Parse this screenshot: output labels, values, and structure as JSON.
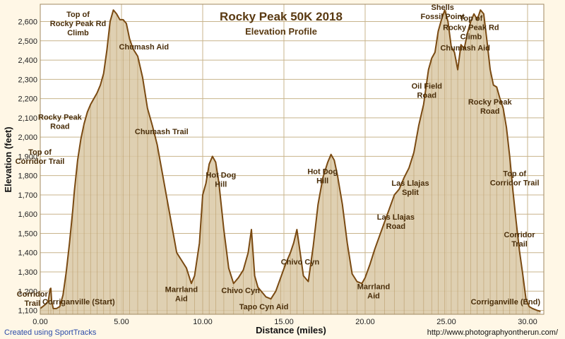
{
  "footer": {
    "credit": "Created using SportTracks",
    "url": "http://www.photographyontherun.com/"
  },
  "colors": {
    "background": "#fff7e6",
    "plot_background": "#ffffff",
    "fill": "#d9c8a4",
    "line": "#7a4a12",
    "grid": "#c8b48c",
    "text": "#4a2e0a"
  },
  "chart_data": {
    "type": "area",
    "title": "Rocky Peak 50K 2018",
    "subtitle": "Elevation Profile",
    "xlabel": "Distance (miles)",
    "ylabel": "Elevation (feet)",
    "xlim": [
      0,
      31
    ],
    "ylim": [
      1080,
      2690
    ],
    "grid": true,
    "x_ticks": [
      0,
      5,
      10,
      15,
      20,
      25,
      30
    ],
    "x_tick_labels": [
      "0.00",
      "5.00",
      "10.00",
      "15.00",
      "20.00",
      "25.00",
      "30.00"
    ],
    "y_ticks": [
      1100,
      1200,
      1300,
      1400,
      1500,
      1600,
      1700,
      1800,
      1900,
      2000,
      2100,
      2200,
      2300,
      2400,
      2500,
      2600
    ],
    "y_tick_labels": [
      "1,100",
      "1,200",
      "1,300",
      "1,400",
      "1,500",
      "1,600",
      "1,700",
      "1,800",
      "1,900",
      "2,000",
      "2,100",
      "2,200",
      "2,300",
      "2,400",
      "2,500",
      "2,600"
    ],
    "series": [
      {
        "x": [
          0.0,
          0.3,
          0.5,
          0.6,
          0.65,
          0.7,
          0.8,
          1.0,
          1.2,
          1.4,
          1.6,
          1.8,
          2.0,
          2.1,
          2.3,
          2.5,
          2.7,
          2.9,
          3.1,
          3.3,
          3.5,
          3.7,
          3.9,
          4.1,
          4.3,
          4.5,
          4.7,
          4.9,
          5.1,
          5.3,
          5.5,
          5.7,
          6.0,
          6.3,
          6.6,
          6.9,
          7.2,
          7.5,
          7.8,
          8.1,
          8.4,
          8.7,
          9.0,
          9.3,
          9.5,
          9.8,
          10.0,
          10.2,
          10.4,
          10.6,
          10.8,
          11.0,
          11.3,
          11.6,
          11.9,
          12.2,
          12.5,
          12.8,
          13.0,
          13.1,
          13.2,
          13.4,
          13.6,
          13.9,
          14.2,
          14.5,
          14.8,
          15.1,
          15.4,
          15.6,
          15.8,
          16.0,
          16.2,
          16.5,
          16.8,
          17.1,
          17.4,
          17.7,
          17.9,
          18.1,
          18.3,
          18.6,
          18.9,
          19.2,
          19.5,
          19.8,
          20.0,
          20.3,
          20.6,
          20.9,
          21.2,
          21.5,
          21.8,
          22.1,
          22.4,
          22.7,
          23.0,
          23.3,
          23.6,
          23.9,
          24.1,
          24.3,
          24.5,
          24.7,
          24.9,
          25.1,
          25.3,
          25.5,
          25.7,
          25.9,
          26.1,
          26.3,
          26.5,
          26.7,
          26.9,
          27.1,
          27.3,
          27.5,
          27.7,
          27.9,
          28.1,
          28.3,
          28.5,
          28.7,
          28.9,
          29.1,
          29.3,
          29.5,
          29.7,
          29.9,
          30.1,
          30.3,
          30.6,
          30.8
        ],
        "y": [
          1110,
          1130,
          1150,
          1210,
          1215,
          1150,
          1110,
          1110,
          1120,
          1180,
          1300,
          1450,
          1620,
          1720,
          1880,
          1990,
          2070,
          2130,
          2170,
          2200,
          2230,
          2270,
          2330,
          2450,
          2600,
          2660,
          2640,
          2610,
          2610,
          2590,
          2510,
          2460,
          2420,
          2310,
          2150,
          2060,
          1960,
          1820,
          1680,
          1540,
          1400,
          1360,
          1320,
          1240,
          1280,
          1450,
          1700,
          1760,
          1860,
          1900,
          1870,
          1760,
          1520,
          1320,
          1240,
          1270,
          1310,
          1400,
          1520,
          1400,
          1280,
          1220,
          1200,
          1170,
          1160,
          1200,
          1270,
          1340,
          1400,
          1450,
          1520,
          1400,
          1280,
          1250,
          1430,
          1650,
          1790,
          1870,
          1910,
          1880,
          1800,
          1650,
          1450,
          1290,
          1250,
          1240,
          1270,
          1340,
          1420,
          1490,
          1560,
          1630,
          1700,
          1730,
          1790,
          1840,
          1920,
          2060,
          2170,
          2350,
          2410,
          2440,
          2550,
          2610,
          2660,
          2600,
          2470,
          2440,
          2350,
          2480,
          2460,
          2540,
          2600,
          2640,
          2610,
          2660,
          2640,
          2500,
          2350,
          2270,
          2260,
          2200,
          2150,
          2050,
          1900,
          1720,
          1560,
          1410,
          1290,
          1160,
          1120,
          1110,
          1100,
          1095
        ]
      }
    ],
    "annotations": [
      {
        "lines": [
          "Top of",
          "Rocky Peak Rd",
          "Climb"
        ],
        "x": 4.5,
        "y": 2660
      },
      {
        "lines": [
          "Rocky Peak",
          "Road"
        ],
        "x": 3.3,
        "y": 2200
      },
      {
        "lines": [
          "Top of",
          "Corridor Trail"
        ],
        "x": 2.5,
        "y": 1990
      },
      {
        "lines": [
          "Corridor",
          "Trail"
        ],
        "x": 1.6,
        "y": 1300
      },
      {
        "lines": [
          "Corrigan​ville (Start)"
        ],
        "x": 0.0,
        "y": 1110
      },
      {
        "lines": [
          "Chumash Aid"
        ],
        "x": 5.6,
        "y": 2470
      },
      {
        "lines": [
          "Chumash Trail"
        ],
        "x": 6.6,
        "y": 2150
      },
      {
        "lines": [
          "Marrland",
          "Aid"
        ],
        "x": 9.3,
        "y": 1240
      },
      {
        "lines": [
          "Hot Dog",
          "Hill"
        ],
        "x": 10.6,
        "y": 1900
      },
      {
        "lines": [
          "Chivo Cyn"
        ],
        "x": 12.2,
        "y": 1270
      },
      {
        "lines": [
          "Tapo Cyn Aid"
        ],
        "x": 14.2,
        "y": 1160
      },
      {
        "lines": [
          "Chivo Cyn"
        ],
        "x": 16.0,
        "y": 1400
      },
      {
        "lines": [
          "Hot Dog",
          "Hill"
        ],
        "x": 17.9,
        "y": 1910
      },
      {
        "lines": [
          "Marrland",
          "Aid"
        ],
        "x": 20.0,
        "y": 1240
      },
      {
        "lines": [
          "Las Llajas",
          "Road"
        ],
        "x": 21.8,
        "y": 1700
      },
      {
        "lines": [
          "Las Llajas",
          "Split"
        ],
        "x": 23.0,
        "y": 1840
      },
      {
        "lines": [
          "Oil Field",
          "Road"
        ],
        "x": 24.1,
        "y": 2350
      },
      {
        "lines": [
          "Shells",
          "Fossil Point"
        ],
        "x": 24.9,
        "y": 2660
      },
      {
        "lines": [
          "Chumash Aid"
        ],
        "x": 25.9,
        "y": 2480
      },
      {
        "lines": [
          "Top of",
          "Rocky Peak Rd",
          "Climb"
        ],
        "x": 27.3,
        "y": 2640
      },
      {
        "lines": [
          "Rocky Peak",
          "Road"
        ],
        "x": 27.9,
        "y": 2260
      },
      {
        "lines": [
          "Top of",
          "Corridor Trail"
        ],
        "x": 28.9,
        "y": 1900
      },
      {
        "lines": [
          "Corridor",
          "Trail"
        ],
        "x": 29.5,
        "y": 1560
      },
      {
        "lines": [
          "Corriganville (End)"
        ],
        "x": 30.3,
        "y": 1110
      }
    ]
  }
}
